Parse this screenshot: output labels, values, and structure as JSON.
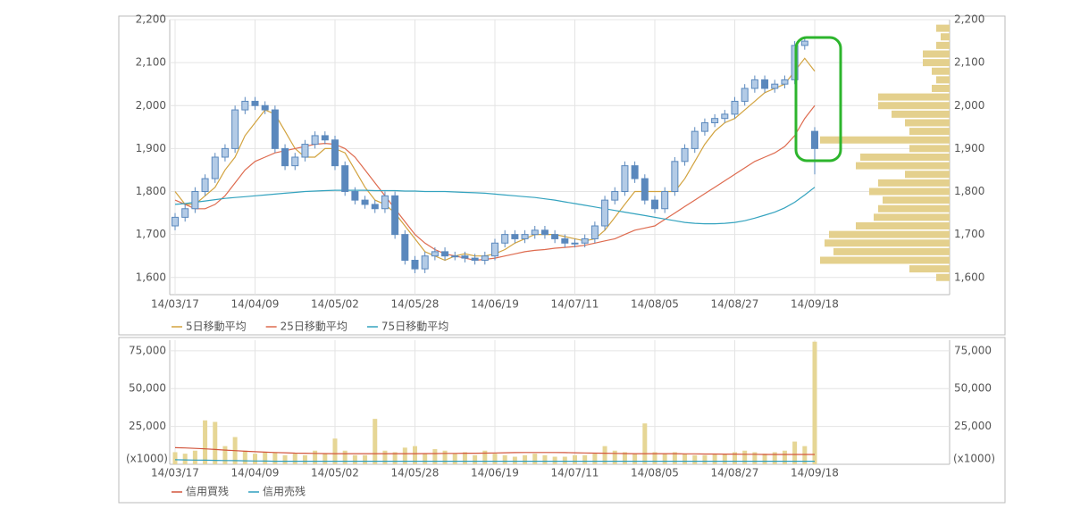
{
  "chart_data": [
    {
      "type": "candlestick",
      "categories": [
        "14/03/17",
        null,
        null,
        null,
        null,
        null,
        null,
        null,
        "14/04/09",
        null,
        null,
        null,
        null,
        null,
        null,
        null,
        "14/05/02",
        null,
        null,
        null,
        null,
        null,
        null,
        null,
        "14/05/28",
        null,
        null,
        null,
        null,
        null,
        null,
        null,
        "14/06/19",
        null,
        null,
        null,
        null,
        null,
        null,
        null,
        "14/07/11",
        null,
        null,
        null,
        null,
        null,
        null,
        null,
        "14/08/05",
        null,
        null,
        null,
        null,
        null,
        null,
        null,
        "14/08/27",
        null,
        null,
        null,
        null,
        null,
        null,
        null,
        "14/09/18"
      ],
      "open": [
        1720,
        1740,
        1760,
        1800,
        1830,
        1880,
        1900,
        1990,
        2010,
        2000,
        1990,
        1900,
        1860,
        1880,
        1910,
        1930,
        1920,
        1860,
        1800,
        1780,
        1770,
        1760,
        1790,
        1700,
        1640,
        1620,
        1650,
        1660,
        1650,
        1650,
        1645,
        1640,
        1650,
        1680,
        1700,
        1690,
        1700,
        1710,
        1700,
        1690,
        1680,
        1680,
        1690,
        1720,
        1780,
        1800,
        1860,
        1830,
        1780,
        1760,
        1800,
        1870,
        1900,
        1940,
        1960,
        1970,
        1980,
        2010,
        2040,
        2060,
        2040,
        2050,
        2060,
        2140,
        1940
      ],
      "high": [
        1750,
        1770,
        1810,
        1840,
        1890,
        1910,
        2000,
        2020,
        2020,
        2010,
        2000,
        1910,
        1890,
        1920,
        1940,
        1940,
        1930,
        1870,
        1810,
        1790,
        1780,
        1800,
        1800,
        1710,
        1650,
        1660,
        1670,
        1670,
        1660,
        1660,
        1655,
        1660,
        1690,
        1710,
        1710,
        1710,
        1720,
        1720,
        1710,
        1700,
        1690,
        1700,
        1730,
        1790,
        1810,
        1870,
        1870,
        1840,
        1790,
        1810,
        1880,
        1910,
        1950,
        1970,
        1980,
        1990,
        2020,
        2050,
        2070,
        2070,
        2060,
        2070,
        2150,
        2160,
        1950
      ],
      "low": [
        1710,
        1730,
        1750,
        1790,
        1820,
        1870,
        1890,
        1980,
        1990,
        1980,
        1890,
        1850,
        1850,
        1870,
        1900,
        1910,
        1850,
        1790,
        1770,
        1760,
        1750,
        1750,
        1690,
        1630,
        1610,
        1610,
        1640,
        1640,
        1640,
        1635,
        1630,
        1630,
        1640,
        1670,
        1680,
        1680,
        1690,
        1690,
        1680,
        1670,
        1670,
        1670,
        1680,
        1710,
        1770,
        1790,
        1820,
        1770,
        1750,
        1750,
        1790,
        1860,
        1890,
        1930,
        1950,
        1960,
        1970,
        2000,
        2030,
        2030,
        2030,
        2040,
        2050,
        2130,
        1840
      ],
      "close": [
        1740,
        1760,
        1800,
        1830,
        1880,
        1900,
        1990,
        2010,
        2000,
        1990,
        1900,
        1860,
        1880,
        1910,
        1930,
        1920,
        1860,
        1800,
        1780,
        1770,
        1760,
        1790,
        1700,
        1640,
        1620,
        1650,
        1660,
        1650,
        1650,
        1645,
        1640,
        1650,
        1680,
        1700,
        1690,
        1700,
        1710,
        1700,
        1690,
        1680,
        1680,
        1690,
        1720,
        1780,
        1800,
        1860,
        1830,
        1780,
        1760,
        1800,
        1870,
        1900,
        1940,
        1960,
        1970,
        1980,
        2010,
        2040,
        2060,
        2040,
        2050,
        2060,
        2140,
        2150,
        1900
      ],
      "color": "#5a88bd",
      "up_color": "#b3cbe6",
      "ylim": [
        1560,
        2200
      ],
      "yticks": [
        {
          "value": 1600,
          "label": "1,600"
        },
        {
          "value": 1700,
          "label": "1,700"
        },
        {
          "value": 1800,
          "label": "1,800"
        },
        {
          "value": 1900,
          "label": "1,900"
        },
        {
          "value": 2000,
          "label": "2,000"
        },
        {
          "value": 2100,
          "label": "2,100"
        },
        {
          "value": 2200,
          "label": "2,200"
        }
      ],
      "grid": true,
      "series": [
        {
          "name": "5日移動平均",
          "color": "#d2a33f",
          "values": [
            1800,
            1770,
            1770,
            1790,
            1810,
            1850,
            1880,
            1930,
            1960,
            1990,
            1980,
            1940,
            1900,
            1880,
            1880,
            1900,
            1900,
            1890,
            1850,
            1810,
            1780,
            1770,
            1750,
            1720,
            1690,
            1660,
            1650,
            1640,
            1650,
            1655,
            1650,
            1650,
            1655,
            1665,
            1680,
            1690,
            1700,
            1700,
            1700,
            1695,
            1690,
            1685,
            1690,
            1710,
            1740,
            1770,
            1800,
            1800,
            1800,
            1800,
            1800,
            1830,
            1870,
            1910,
            1940,
            1960,
            1970,
            1990,
            2010,
            2030,
            2040,
            2050,
            2080,
            2110,
            2080
          ]
        },
        {
          "name": "25日移動平均",
          "color": "#de6b4f",
          "values": [
            1780,
            1770,
            1760,
            1760,
            1770,
            1790,
            1820,
            1850,
            1870,
            1880,
            1890,
            1895,
            1900,
            1905,
            1910,
            1912,
            1910,
            1900,
            1880,
            1850,
            1820,
            1790,
            1760,
            1730,
            1700,
            1680,
            1665,
            1655,
            1650,
            1645,
            1640,
            1642,
            1645,
            1650,
            1655,
            1660,
            1663,
            1665,
            1668,
            1670,
            1672,
            1675,
            1680,
            1685,
            1690,
            1700,
            1710,
            1715,
            1720,
            1735,
            1750,
            1765,
            1780,
            1795,
            1810,
            1825,
            1840,
            1855,
            1870,
            1880,
            1890,
            1905,
            1930,
            1970,
            2000
          ]
        },
        {
          "name": "75日移動平均",
          "color": "#34a3bf",
          "values": [
            1770,
            1772,
            1775,
            1778,
            1781,
            1784,
            1786,
            1788,
            1790,
            1792,
            1794,
            1796,
            1798,
            1800,
            1801,
            1802,
            1803,
            1803,
            1803,
            1803,
            1802,
            1802,
            1802,
            1801,
            1801,
            1800,
            1800,
            1800,
            1799,
            1798,
            1797,
            1796,
            1794,
            1792,
            1790,
            1788,
            1786,
            1783,
            1780,
            1776,
            1772,
            1768,
            1764,
            1760,
            1756,
            1752,
            1748,
            1744,
            1740,
            1736,
            1732,
            1728,
            1726,
            1725,
            1725,
            1726,
            1728,
            1732,
            1738,
            1745,
            1752,
            1762,
            1775,
            1792,
            1810
          ]
        }
      ],
      "profile": {
        "color": "#e4d08d",
        "xlim": [
          0,
          15
        ],
        "prices": [
          1600,
          1620,
          1640,
          1660,
          1680,
          1700,
          1720,
          1740,
          1760,
          1780,
          1800,
          1820,
          1840,
          1860,
          1880,
          1900,
          1920,
          1940,
          1960,
          1980,
          2000,
          2020,
          2040,
          2060,
          2080,
          2100,
          2120,
          2140,
          2160,
          2180
        ],
        "values": [
          1.5,
          4.5,
          14.5,
          13,
          14,
          13.5,
          10.5,
          8.5,
          8,
          7.5,
          9,
          8,
          5,
          10.5,
          10,
          4.5,
          14.5,
          4.5,
          5,
          6.5,
          8,
          8,
          2,
          1.5,
          2,
          3,
          3,
          1.5,
          1,
          1.5
        ]
      }
    },
    {
      "type": "bar",
      "categories": [
        "14/03/17",
        null,
        null,
        null,
        null,
        null,
        null,
        null,
        "14/04/09",
        null,
        null,
        null,
        null,
        null,
        null,
        null,
        "14/05/02",
        null,
        null,
        null,
        null,
        null,
        null,
        null,
        "14/05/28",
        null,
        null,
        null,
        null,
        null,
        null,
        null,
        "14/06/19",
        null,
        null,
        null,
        null,
        null,
        null,
        null,
        "14/07/11",
        null,
        null,
        null,
        null,
        null,
        null,
        null,
        "14/08/05",
        null,
        null,
        null,
        null,
        null,
        null,
        null,
        "14/08/27",
        null,
        null,
        null,
        null,
        null,
        null,
        null,
        "14/09/18"
      ],
      "values": [
        8000,
        7000,
        9000,
        29000,
        28000,
        12000,
        18000,
        9000,
        7000,
        8000,
        8000,
        6000,
        7000,
        6000,
        9000,
        7000,
        17000,
        9000,
        6000,
        6000,
        30000,
        9000,
        8000,
        11000,
        12000,
        7000,
        10000,
        9000,
        7000,
        8000,
        6000,
        9000,
        7000,
        6000,
        5000,
        6000,
        7000,
        6000,
        5000,
        5000,
        6000,
        6000,
        7000,
        12000,
        9000,
        8000,
        7000,
        27000,
        8000,
        7000,
        8000,
        7000,
        6000,
        6000,
        7000,
        7000,
        8000,
        9000,
        8000,
        7000,
        8000,
        9000,
        15000,
        12000,
        81000
      ],
      "color": "#e6d695",
      "unit": "(x1000)",
      "ylim": [
        0,
        82000
      ],
      "yticks": [
        {
          "value": 25000,
          "label": "25,000"
        },
        {
          "value": 50000,
          "label": "50,000"
        },
        {
          "value": 75000,
          "label": "75,000"
        }
      ],
      "grid": true,
      "series": [
        {
          "name": "信用買残",
          "color": "#d2553c",
          "values": [
            11000,
            10800,
            10500,
            10200,
            9800,
            9400,
            9000,
            8600,
            8300,
            8000,
            7800,
            7600,
            7400,
            7300,
            7200,
            7100,
            7000,
            7000,
            7000,
            7000,
            7000,
            7000,
            7000,
            7000,
            7000,
            7100,
            7100,
            7200,
            7200,
            7300,
            7300,
            7400,
            7500,
            7600,
            7700,
            7800,
            7800,
            7800,
            7800,
            7700,
            7600,
            7500,
            7400,
            7300,
            7200,
            7100,
            7000,
            7000,
            7000,
            7000,
            7000,
            6900,
            6900,
            6800,
            6800,
            6700,
            6700,
            6600,
            6600,
            6500,
            6500,
            6500,
            6500,
            6500,
            6500
          ]
        },
        {
          "name": "信用売残",
          "color": "#2f9fbf",
          "values": [
            3000,
            2900,
            2800,
            2700,
            2600,
            2500,
            2400,
            2300,
            2200,
            2100,
            2000,
            2000,
            2000,
            2000,
            2000,
            2000,
            2000,
            2000,
            2000,
            2000,
            2000,
            2000,
            2000,
            2000,
            2000,
            2000,
            2000,
            2000,
            2000,
            2000,
            2000,
            2000,
            2000,
            2000,
            2000,
            2000,
            2000,
            2000,
            2000,
            2000,
            2000,
            2000,
            2000,
            2000,
            2000,
            2000,
            2000,
            2000,
            2000,
            2000,
            2000,
            2000,
            2000,
            2000,
            2000,
            2000,
            2000,
            2000,
            2000,
            2000,
            2000,
            2000,
            2000,
            2000,
            2000
          ]
        }
      ]
    }
  ]
}
